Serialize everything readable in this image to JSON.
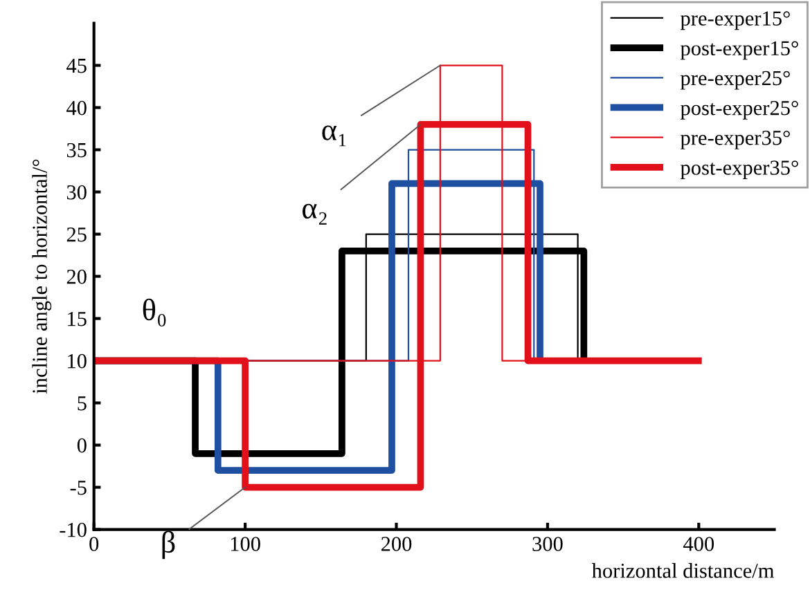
{
  "chart_data": {
    "type": "step",
    "xlabel": "horizontal distance/m",
    "ylabel": "incline angle to horizontal/°",
    "xlim": [
      0,
      450
    ],
    "xticks": [
      0,
      100,
      200,
      300,
      400
    ],
    "ylim": [
      -10,
      50
    ],
    "yticks": [
      -10,
      -5,
      0,
      5,
      10,
      15,
      20,
      25,
      30,
      35,
      40,
      45
    ],
    "grid": false,
    "legend": "top right",
    "series": [
      {
        "name": "pre-exper15°",
        "color": "#000000",
        "x": [
          0,
          180,
          320
        ],
        "values": [
          10,
          25,
          10
        ]
      },
      {
        "name": "post-exper15°",
        "color": "#000000",
        "x": [
          0,
          67,
          164,
          324
        ],
        "values": [
          10,
          -1,
          23,
          10
        ]
      },
      {
        "name": "pre-exper25°",
        "color": "#1f4fa0",
        "x": [
          0,
          208,
          291
        ],
        "values": [
          10,
          35,
          10
        ]
      },
      {
        "name": "post-exper25°",
        "color": "#1f4fa0",
        "x": [
          0,
          82,
          197,
          295
        ],
        "values": [
          10,
          -3,
          31,
          10
        ]
      },
      {
        "name": "pre-exper35°",
        "color": "#e2101a",
        "x": [
          0,
          229,
          270,
          400
        ],
        "values": [
          10,
          45,
          10,
          10
        ]
      },
      {
        "name": "post-exper35°",
        "color": "#e2101a",
        "x": [
          0,
          100,
          216,
          287,
          402
        ],
        "values": [
          10,
          -5,
          38,
          10,
          10
        ]
      }
    ],
    "annotations": [
      {
        "text": "θ₀",
        "x": 40,
        "y": 10
      },
      {
        "text": "α₁",
        "x": 229,
        "y": 45
      },
      {
        "text": "α₂",
        "x": 216,
        "y": 38
      },
      {
        "text": "β",
        "x": 100,
        "y": -5
      }
    ]
  }
}
